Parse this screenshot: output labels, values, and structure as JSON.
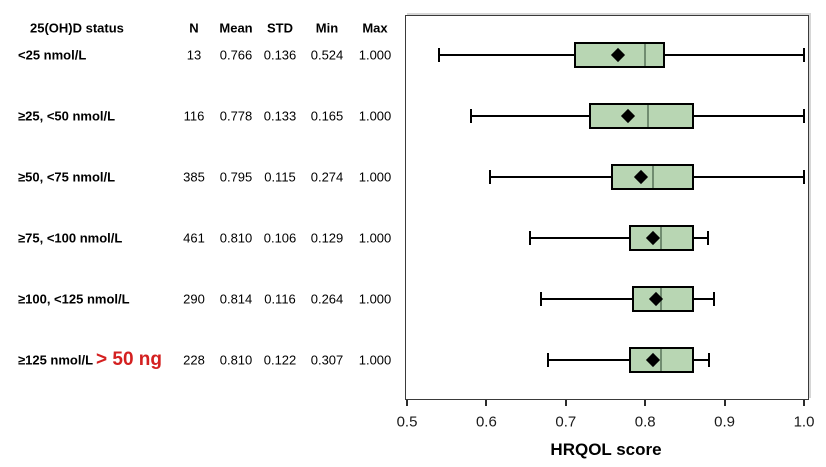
{
  "table": {
    "headers": {
      "status": "25(OH)D status",
      "n": "N",
      "mean": "Mean",
      "std": "STD",
      "min": "Min",
      "max": "Max"
    }
  },
  "annotation": {
    "text": "> 50 ng",
    "color": "#d42020",
    "attached_to_row": "≥125 nmol/L"
  },
  "chart_data": {
    "type": "boxplot",
    "orientation": "horizontal",
    "title": "",
    "xlabel": "HRQOL score",
    "ylabel": "",
    "xlim": [
      0.5,
      1.0
    ],
    "xticks": [
      0.5,
      0.6,
      0.7,
      0.8,
      0.9,
      1.0
    ],
    "xtick_labels": [
      "0.5",
      "0.6",
      "0.7",
      "0.8",
      "0.9",
      "1.0"
    ],
    "grid": false,
    "legend": false,
    "colors": {
      "box_fill": "#b8d6b3",
      "box_border": "#000000",
      "median_line": "#708c70",
      "whisker": "#000000",
      "mean_marker": "#000000"
    },
    "rows": [
      {
        "label": "<25 nmol/L",
        "n": "13",
        "mean": "0.766",
        "std": "0.136",
        "min": "0.524",
        "max": "1.000",
        "box": {
          "whisker_low": 0.54,
          "q1": 0.71,
          "median": 0.8,
          "q3": 0.825,
          "whisker_high": 1.0,
          "mean": 0.766
        }
      },
      {
        "label": "≥25, <50 nmol/L",
        "n": "116",
        "mean": "0.778",
        "std": "0.133",
        "min": "0.165",
        "max": "1.000",
        "box": {
          "whisker_low": 0.58,
          "q1": 0.729,
          "median": 0.803,
          "q3": 0.862,
          "whisker_high": 1.0,
          "mean": 0.778
        }
      },
      {
        "label": "≥50, <75 nmol/L",
        "n": "385",
        "mean": "0.795",
        "std": "0.115",
        "min": "0.274",
        "max": "1.000",
        "box": {
          "whisker_low": 0.605,
          "q1": 0.757,
          "median": 0.81,
          "q3": 0.861,
          "whisker_high": 1.0,
          "mean": 0.795
        }
      },
      {
        "label": "≥75, <100 nmol/L",
        "n": "461",
        "mean": "0.810",
        "std": "0.106",
        "min": "0.129",
        "max": "1.000",
        "box": {
          "whisker_low": 0.655,
          "q1": 0.779,
          "median": 0.82,
          "q3": 0.861,
          "whisker_high": 0.879,
          "mean": 0.81
        }
      },
      {
        "label": "≥100, <125 nmol/L",
        "n": "290",
        "mean": "0.814",
        "std": "0.116",
        "min": "0.264",
        "max": "1.000",
        "box": {
          "whisker_low": 0.669,
          "q1": 0.783,
          "median": 0.82,
          "q3": 0.861,
          "whisker_high": 0.887,
          "mean": 0.814
        }
      },
      {
        "label": "≥125 nmol/L",
        "n": "228",
        "mean": "0.810",
        "std": "0.122",
        "min": "0.307",
        "max": "1.000",
        "box": {
          "whisker_low": 0.678,
          "q1": 0.78,
          "median": 0.82,
          "q3": 0.861,
          "whisker_high": 0.88,
          "mean": 0.81
        }
      }
    ]
  }
}
